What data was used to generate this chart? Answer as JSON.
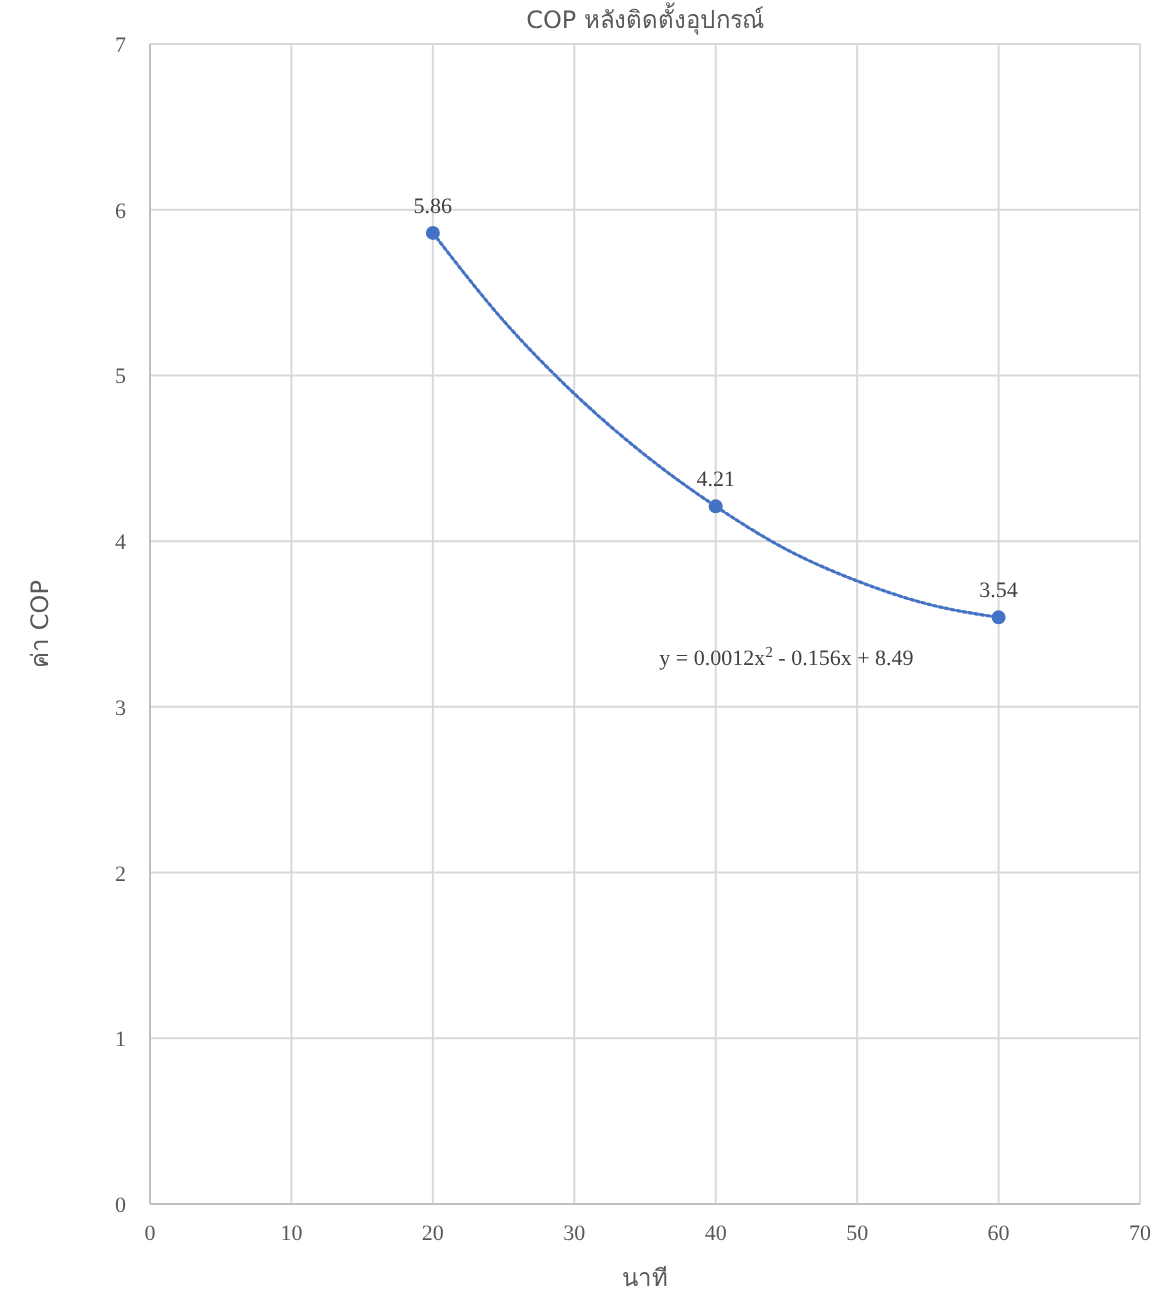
{
  "chart_data": {
    "type": "scatter",
    "title": "COP หลังติดตั้งอุปกรณ์",
    "xlabel": "นาที",
    "ylabel": "ค่า COP",
    "xlim": [
      0,
      70
    ],
    "xticks": [
      0,
      10,
      20,
      30,
      40,
      50,
      60,
      70
    ],
    "ylim": [
      0,
      7
    ],
    "yticks": [
      0,
      1,
      2,
      3,
      4,
      5,
      6,
      7
    ],
    "grid": true,
    "marker": "circle",
    "annotations": [
      "y = 0.0012x$^{2}$ - 0.156x + 8.49"
    ],
    "series": [
      {
        "color": "#4472c4",
        "x": [
          20,
          40,
          60
        ],
        "values": [
          5.86,
          4.21,
          3.54
        ],
        "value_labels": [
          "5.86",
          "4.21",
          "3.54"
        ]
      },
      {
        "type": "line",
        "marker": "none",
        "line_style": "dotted",
        "color": "#4472c4",
        "x": [
          20,
          25,
          30,
          35,
          40,
          45,
          50,
          55,
          60
        ],
        "values": [
          5.86,
          5.33,
          4.89,
          4.52,
          4.21,
          3.95,
          3.76,
          3.62,
          3.54
        ]
      }
    ]
  }
}
